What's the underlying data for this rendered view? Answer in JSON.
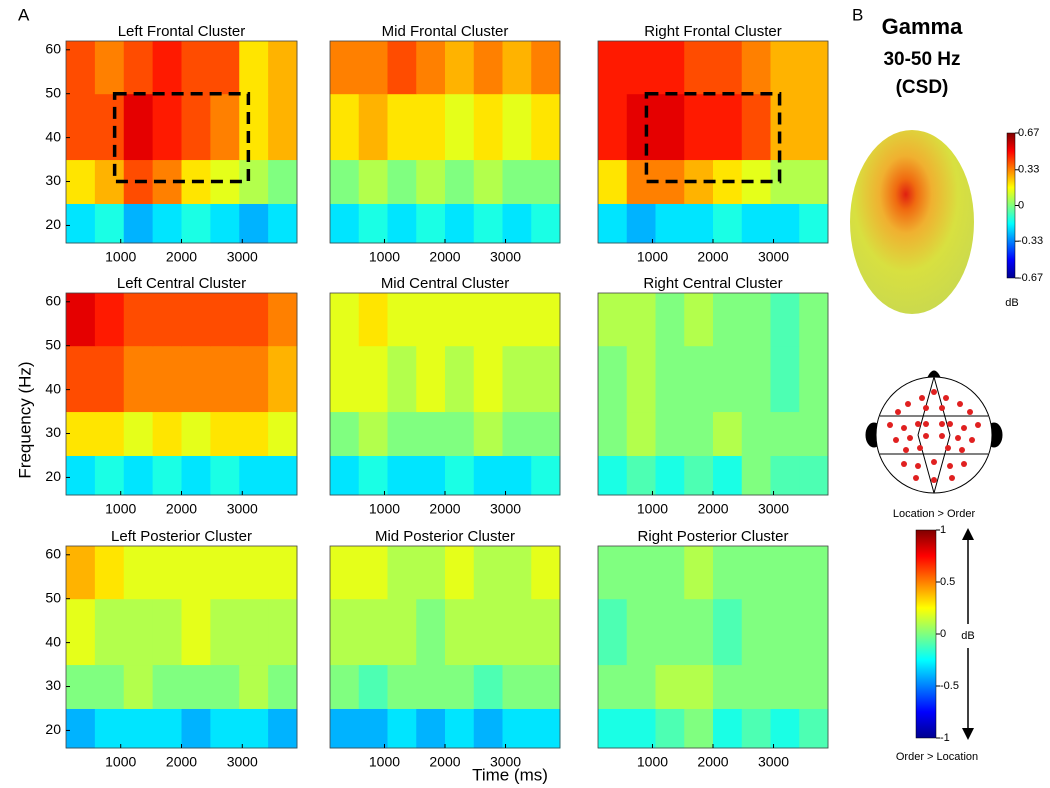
{
  "panel_labels": [
    "A",
    "B"
  ],
  "y_label": "Frequency (Hz)",
  "x_label": "Time (ms)",
  "chart_data": [
    {
      "type": "heatmap",
      "title": "Left Frontal Cluster",
      "colormap": "jet",
      "clim": [
        -1,
        1
      ],
      "xbins": [
        100,
        575,
        1050,
        1525,
        2000,
        2475,
        2950,
        3425,
        3900
      ],
      "ybins": [
        16,
        25,
        35,
        50,
        62
      ],
      "values": [
        [
          -0.3,
          -0.2,
          -0.4,
          -0.3,
          -0.2,
          -0.3,
          -0.4,
          -0.3
        ],
        [
          0.3,
          0.4,
          0.6,
          0.5,
          0.3,
          0.2,
          0.1,
          0.0
        ],
        [
          0.6,
          0.6,
          0.8,
          0.7,
          0.6,
          0.5,
          0.3,
          0.4
        ],
        [
          0.6,
          0.5,
          0.6,
          0.7,
          0.6,
          0.6,
          0.3,
          0.4
        ]
      ],
      "xlim": [
        100,
        3900
      ],
      "ylim": [
        16,
        62
      ],
      "xticks": [
        1000,
        2000,
        3000
      ],
      "yticks": [
        20,
        30,
        40,
        50,
        60
      ],
      "roi": {
        "x": [
          900,
          3100
        ],
        "y": [
          30,
          50
        ]
      }
    },
    {
      "type": "heatmap",
      "title": "Mid Frontal Cluster",
      "colormap": "jet",
      "clim": [
        -1,
        1
      ],
      "xbins": [
        100,
        575,
        1050,
        1525,
        2000,
        2475,
        2950,
        3425,
        3900
      ],
      "ybins": [
        16,
        25,
        35,
        50,
        62
      ],
      "values": [
        [
          -0.3,
          -0.2,
          -0.3,
          -0.2,
          -0.3,
          -0.2,
          -0.3,
          -0.2
        ],
        [
          0.0,
          0.1,
          0.0,
          0.1,
          0.0,
          0.1,
          0.0,
          0.0
        ],
        [
          0.3,
          0.4,
          0.3,
          0.3,
          0.2,
          0.3,
          0.2,
          0.3
        ],
        [
          0.5,
          0.5,
          0.6,
          0.5,
          0.4,
          0.5,
          0.4,
          0.5
        ]
      ],
      "xlim": [
        100,
        3900
      ],
      "ylim": [
        16,
        62
      ],
      "xticks": [
        1000,
        2000,
        3000
      ]
    },
    {
      "type": "heatmap",
      "title": "Right Frontal Cluster",
      "colormap": "jet",
      "clim": [
        -1,
        1
      ],
      "xbins": [
        100,
        575,
        1050,
        1525,
        2000,
        2475,
        2950,
        3425,
        3900
      ],
      "ybins": [
        16,
        25,
        35,
        50,
        62
      ],
      "values": [
        [
          -0.3,
          -0.4,
          -0.3,
          -0.3,
          -0.2,
          -0.3,
          -0.3,
          -0.2
        ],
        [
          0.3,
          0.5,
          0.5,
          0.4,
          0.3,
          0.2,
          0.1,
          0.1
        ],
        [
          0.7,
          0.8,
          0.8,
          0.7,
          0.7,
          0.6,
          0.4,
          0.4
        ],
        [
          0.7,
          0.7,
          0.7,
          0.6,
          0.6,
          0.5,
          0.4,
          0.4
        ]
      ],
      "xlim": [
        100,
        3900
      ],
      "ylim": [
        16,
        62
      ],
      "xticks": [
        1000,
        2000,
        3000
      ],
      "roi": {
        "x": [
          900,
          3100
        ],
        "y": [
          30,
          50
        ]
      }
    },
    {
      "type": "heatmap",
      "title": "Left Central Cluster",
      "colormap": "jet",
      "clim": [
        -1,
        1
      ],
      "xbins": [
        100,
        575,
        1050,
        1525,
        2000,
        2475,
        2950,
        3425,
        3900
      ],
      "ybins": [
        16,
        25,
        35,
        50,
        62
      ],
      "values": [
        [
          -0.3,
          -0.2,
          -0.3,
          -0.2,
          -0.3,
          -0.2,
          -0.3,
          -0.3
        ],
        [
          0.3,
          0.3,
          0.2,
          0.3,
          0.2,
          0.3,
          0.3,
          0.2
        ],
        [
          0.6,
          0.6,
          0.5,
          0.5,
          0.5,
          0.5,
          0.5,
          0.4
        ],
        [
          0.8,
          0.7,
          0.6,
          0.6,
          0.6,
          0.6,
          0.6,
          0.5
        ]
      ],
      "xlim": [
        100,
        3900
      ],
      "ylim": [
        16,
        62
      ],
      "xticks": [
        1000,
        2000,
        3000
      ],
      "yticks": [
        20,
        30,
        40,
        50,
        60
      ]
    },
    {
      "type": "heatmap",
      "title": "Mid Central Cluster",
      "colormap": "jet",
      "clim": [
        -1,
        1
      ],
      "xbins": [
        100,
        575,
        1050,
        1525,
        2000,
        2475,
        2950,
        3425,
        3900
      ],
      "ybins": [
        16,
        25,
        35,
        50,
        62
      ],
      "values": [
        [
          -0.3,
          -0.2,
          -0.3,
          -0.3,
          -0.2,
          -0.3,
          -0.3,
          -0.2
        ],
        [
          0.0,
          0.1,
          0.0,
          0.0,
          0.0,
          0.1,
          0.0,
          0.0
        ],
        [
          0.2,
          0.2,
          0.1,
          0.2,
          0.1,
          0.2,
          0.1,
          0.1
        ],
        [
          0.2,
          0.3,
          0.2,
          0.2,
          0.2,
          0.2,
          0.2,
          0.2
        ]
      ],
      "xlim": [
        100,
        3900
      ],
      "ylim": [
        16,
        62
      ],
      "xticks": [
        1000,
        2000,
        3000
      ]
    },
    {
      "type": "heatmap",
      "title": "Right Central Cluster",
      "colormap": "jet",
      "clim": [
        -1,
        1
      ],
      "xbins": [
        100,
        575,
        1050,
        1525,
        2000,
        2475,
        2950,
        3425,
        3900
      ],
      "ybins": [
        16,
        25,
        35,
        50,
        62
      ],
      "values": [
        [
          -0.2,
          -0.1,
          -0.2,
          -0.1,
          -0.2,
          0.0,
          -0.1,
          -0.1
        ],
        [
          0.0,
          0.1,
          0.0,
          0.0,
          0.1,
          0.0,
          0.0,
          0.0
        ],
        [
          0.0,
          0.1,
          0.0,
          0.0,
          0.0,
          0.0,
          -0.1,
          0.0
        ],
        [
          0.1,
          0.1,
          0.0,
          0.1,
          0.0,
          0.0,
          -0.1,
          0.0
        ]
      ],
      "xlim": [
        100,
        3900
      ],
      "ylim": [
        16,
        62
      ],
      "xticks": [
        1000,
        2000,
        3000
      ]
    },
    {
      "type": "heatmap",
      "title": "Left Posterior Cluster",
      "colormap": "jet",
      "clim": [
        -1,
        1
      ],
      "xbins": [
        100,
        575,
        1050,
        1525,
        2000,
        2475,
        2950,
        3425,
        3900
      ],
      "ybins": [
        16,
        25,
        35,
        50,
        62
      ],
      "values": [
        [
          -0.4,
          -0.3,
          -0.3,
          -0.3,
          -0.4,
          -0.3,
          -0.3,
          -0.4
        ],
        [
          0.0,
          0.0,
          0.1,
          0.0,
          0.0,
          0.0,
          0.1,
          0.0
        ],
        [
          0.2,
          0.1,
          0.1,
          0.1,
          0.2,
          0.1,
          0.1,
          0.1
        ],
        [
          0.4,
          0.3,
          0.2,
          0.2,
          0.2,
          0.2,
          0.2,
          0.2
        ]
      ],
      "xlim": [
        100,
        3900
      ],
      "ylim": [
        16,
        62
      ],
      "xticks": [
        1000,
        2000,
        3000
      ],
      "yticks": [
        20,
        30,
        40,
        50,
        60
      ]
    },
    {
      "type": "heatmap",
      "title": "Mid Posterior Cluster",
      "colormap": "jet",
      "clim": [
        -1,
        1
      ],
      "xbins": [
        100,
        575,
        1050,
        1525,
        2000,
        2475,
        2950,
        3425,
        3900
      ],
      "ybins": [
        16,
        25,
        35,
        50,
        62
      ],
      "values": [
        [
          -0.4,
          -0.4,
          -0.3,
          -0.4,
          -0.3,
          -0.4,
          -0.3,
          -0.3
        ],
        [
          0.0,
          -0.1,
          0.0,
          0.0,
          0.0,
          -0.1,
          0.0,
          0.0
        ],
        [
          0.1,
          0.1,
          0.1,
          0.0,
          0.1,
          0.1,
          0.1,
          0.1
        ],
        [
          0.2,
          0.2,
          0.1,
          0.1,
          0.2,
          0.1,
          0.1,
          0.2
        ]
      ],
      "xlim": [
        100,
        3900
      ],
      "ylim": [
        16,
        62
      ],
      "xticks": [
        1000,
        2000,
        3000
      ]
    },
    {
      "type": "heatmap",
      "title": "Right Posterior Cluster",
      "colormap": "jet",
      "clim": [
        -1,
        1
      ],
      "xbins": [
        100,
        575,
        1050,
        1525,
        2000,
        2475,
        2950,
        3425,
        3900
      ],
      "ybins": [
        16,
        25,
        35,
        50,
        62
      ],
      "values": [
        [
          -0.2,
          -0.2,
          -0.1,
          0.0,
          -0.2,
          -0.1,
          -0.2,
          -0.1
        ],
        [
          0.0,
          0.0,
          0.1,
          0.1,
          0.0,
          0.0,
          0.0,
          0.0
        ],
        [
          -0.1,
          0.0,
          0.0,
          0.0,
          -0.1,
          0.0,
          0.0,
          0.0
        ],
        [
          0.0,
          0.0,
          0.0,
          0.1,
          0.0,
          0.0,
          0.0,
          0.0
        ]
      ],
      "xlim": [
        100,
        3900
      ],
      "ylim": [
        16,
        62
      ],
      "xticks": [
        1000,
        2000,
        3000
      ]
    }
  ],
  "topography": {
    "title": "Gamma",
    "band": "30-50 Hz",
    "method": "(CSD)",
    "clim": [
      -0.67,
      0.67
    ],
    "ticks": [
      -0.67,
      -0.33,
      0,
      0.33,
      0.67
    ],
    "unit": "dB"
  },
  "contrast_colorbar": {
    "clim": [
      -1,
      1
    ],
    "ticks": [
      -1,
      -0.5,
      0,
      0.5,
      1
    ],
    "unit": "dB",
    "top_label": "Location > Order",
    "bottom_label": "Order > Location"
  }
}
